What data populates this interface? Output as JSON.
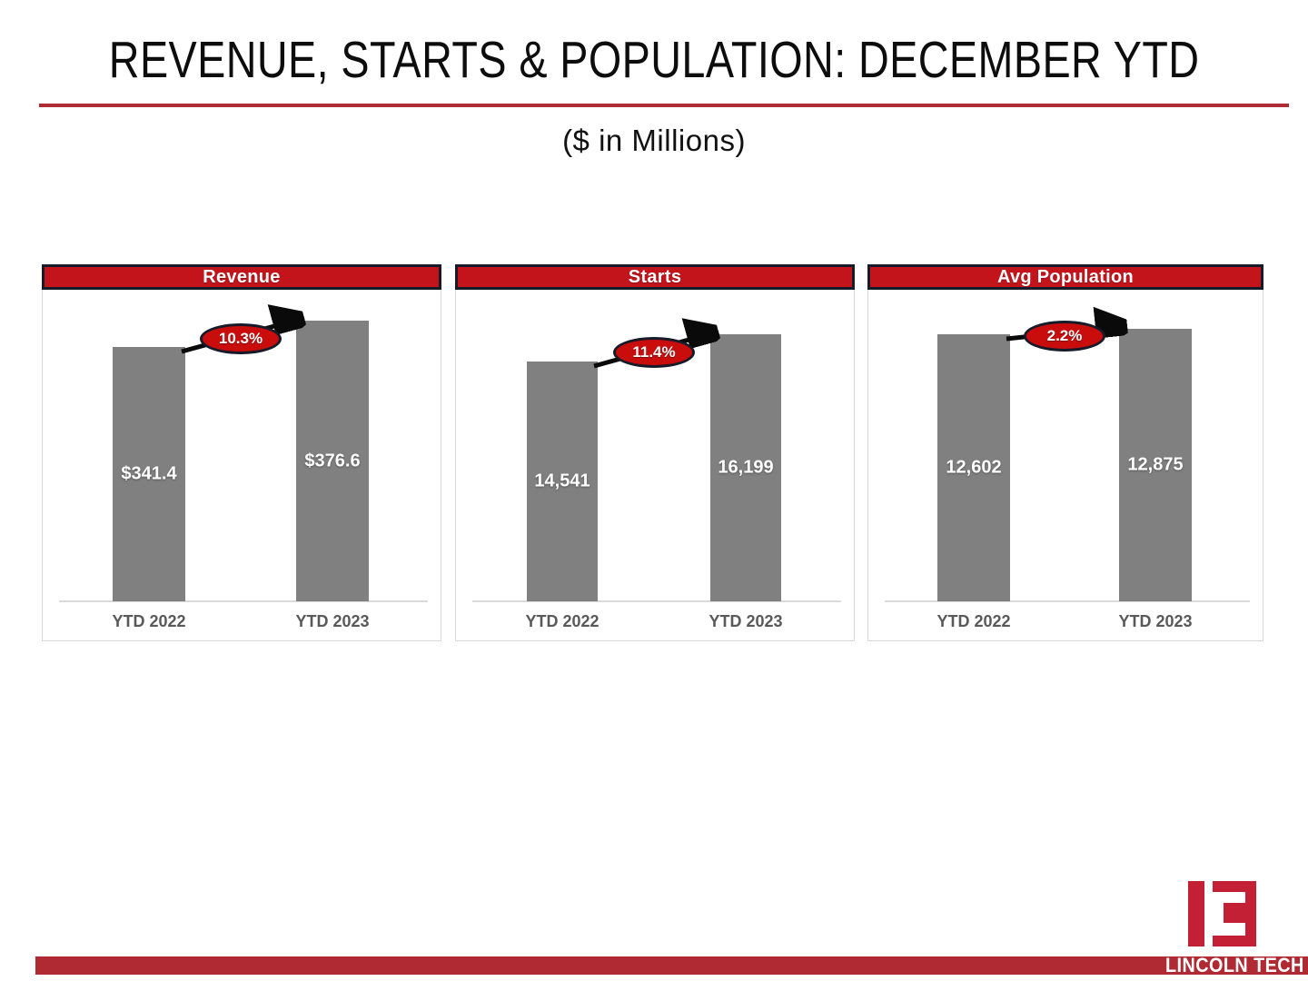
{
  "slide": {
    "title": "REVENUE, STARTS & POPULATION: DECEMBER YTD",
    "subtitle": "($ in Millions)",
    "footer_brand": "LINCOLN TECH"
  },
  "colors": {
    "header_red": "#C3141C",
    "ellipse_red": "#C90D0D",
    "accent_crimson": "#B02A33",
    "logo_red": "#C32036",
    "bar_gray": "#808080",
    "dark_border": "#161B29",
    "axis_label_gray": "#595959"
  },
  "chart_data": [
    {
      "type": "bar",
      "title": "Revenue",
      "categories": [
        "YTD 2022",
        "YTD 2023"
      ],
      "values": [
        341.4,
        376.6
      ],
      "value_labels": [
        "$341.4",
        "$376.6"
      ],
      "growth_label": "10.3%",
      "ylabel": "",
      "xlabel": "",
      "ylim": [
        0,
        420
      ],
      "grid": false,
      "legend": "none",
      "annotations": [
        "10.3% growth arrow from YTD 2022 to YTD 2023"
      ]
    },
    {
      "type": "bar",
      "title": "Starts",
      "categories": [
        "YTD 2022",
        "YTD 2023"
      ],
      "values": [
        14541,
        16199
      ],
      "value_labels": [
        "14,541",
        "16,199"
      ],
      "growth_label": "11.4%",
      "ylabel": "",
      "xlabel": "",
      "ylim": [
        0,
        18000
      ],
      "grid": false,
      "legend": "none",
      "annotations": [
        "11.4% growth arrow from YTD 2022 to YTD 2023"
      ]
    },
    {
      "type": "bar",
      "title": "Avg Population",
      "categories": [
        "YTD 2022",
        "YTD 2023"
      ],
      "values": [
        12602,
        12875
      ],
      "value_labels": [
        "12,602",
        "12,875"
      ],
      "growth_label": "2.2%",
      "ylabel": "",
      "xlabel": "",
      "ylim": [
        0,
        13500
      ],
      "grid": false,
      "legend": "none",
      "annotations": [
        "2.2% growth arrow from YTD 2022 to YTD 2023"
      ]
    }
  ]
}
